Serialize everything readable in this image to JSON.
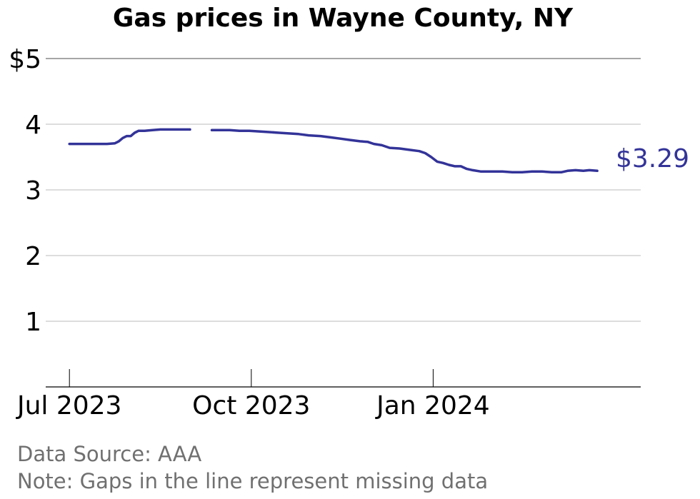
{
  "chart_data": {
    "type": "line",
    "title": "Gas prices in Wayne County, NY",
    "xlabel": "",
    "ylabel": "",
    "ylim": [
      0,
      5
    ],
    "xlim": [
      "2023-06-19",
      "2024-04-15"
    ],
    "yticks": [
      {
        "value": 1,
        "label": "1"
      },
      {
        "value": 2,
        "label": "2"
      },
      {
        "value": 3,
        "label": "3"
      },
      {
        "value": 4,
        "label": "4"
      },
      {
        "value": 5,
        "label": "$5"
      }
    ],
    "xticks": [
      {
        "date": "2023-07-01",
        "label": "Jul 2023"
      },
      {
        "date": "2023-10-01",
        "label": "Oct 2023"
      },
      {
        "date": "2024-01-01",
        "label": "Jan 2024"
      }
    ],
    "grid": true,
    "line_color": "#333399",
    "series": [
      {
        "segments": [
          [
            [
              "2023-07-01",
              3.7
            ],
            [
              "2023-07-04",
              3.7
            ],
            [
              "2023-07-08",
              3.7
            ],
            [
              "2023-07-12",
              3.7
            ],
            [
              "2023-07-16",
              3.7
            ],
            [
              "2023-07-20",
              3.7
            ],
            [
              "2023-07-24",
              3.71
            ],
            [
              "2023-07-26",
              3.74
            ],
            [
              "2023-07-28",
              3.79
            ],
            [
              "2023-07-30",
              3.82
            ],
            [
              "2023-08-01",
              3.82
            ],
            [
              "2023-08-03",
              3.87
            ],
            [
              "2023-08-05",
              3.9
            ],
            [
              "2023-08-08",
              3.9
            ],
            [
              "2023-08-12",
              3.91
            ],
            [
              "2023-08-16",
              3.92
            ],
            [
              "2023-08-20",
              3.92
            ],
            [
              "2023-08-24",
              3.92
            ],
            [
              "2023-08-28",
              3.92
            ],
            [
              "2023-08-31",
              3.92
            ]
          ],
          [
            [
              "2023-09-11",
              3.91
            ],
            [
              "2023-09-15",
              3.91
            ],
            [
              "2023-09-20",
              3.91
            ],
            [
              "2023-09-25",
              3.9
            ],
            [
              "2023-09-30",
              3.9
            ],
            [
              "2023-10-05",
              3.89
            ],
            [
              "2023-10-10",
              3.88
            ],
            [
              "2023-10-15",
              3.87
            ],
            [
              "2023-10-20",
              3.86
            ],
            [
              "2023-10-25",
              3.85
            ],
            [
              "2023-10-30",
              3.83
            ],
            [
              "2023-11-05",
              3.82
            ],
            [
              "2023-11-10",
              3.8
            ],
            [
              "2023-11-15",
              3.78
            ],
            [
              "2023-11-20",
              3.76
            ],
            [
              "2023-11-25",
              3.74
            ],
            [
              "2023-11-29",
              3.73
            ],
            [
              "2023-12-02",
              3.7
            ],
            [
              "2023-12-06",
              3.68
            ],
            [
              "2023-12-10",
              3.64
            ],
            [
              "2023-12-15",
              3.63
            ],
            [
              "2023-12-20",
              3.61
            ],
            [
              "2023-12-25",
              3.59
            ],
            [
              "2023-12-28",
              3.56
            ],
            [
              "2023-12-31",
              3.5
            ],
            [
              "2024-01-03",
              3.43
            ],
            [
              "2024-01-06",
              3.41
            ],
            [
              "2024-01-09",
              3.38
            ],
            [
              "2024-01-12",
              3.36
            ],
            [
              "2024-01-15",
              3.36
            ],
            [
              "2024-01-18",
              3.32
            ],
            [
              "2024-01-21",
              3.3
            ],
            [
              "2024-01-25",
              3.28
            ],
            [
              "2024-01-30",
              3.28
            ],
            [
              "2024-02-05",
              3.28
            ],
            [
              "2024-02-10",
              3.27
            ],
            [
              "2024-02-15",
              3.27
            ],
            [
              "2024-02-20",
              3.28
            ],
            [
              "2024-02-25",
              3.28
            ],
            [
              "2024-03-01",
              3.27
            ],
            [
              "2024-03-06",
              3.27
            ],
            [
              "2024-03-09",
              3.29
            ],
            [
              "2024-03-13",
              3.3
            ],
            [
              "2024-03-17",
              3.29
            ],
            [
              "2024-03-20",
              3.3
            ],
            [
              "2024-03-24",
              3.29
            ]
          ]
        ]
      }
    ],
    "end_label": "$3.29",
    "notes": {
      "source": "Data Source: AAA",
      "gaps": "Note: Gaps in the line represent missing data"
    }
  }
}
